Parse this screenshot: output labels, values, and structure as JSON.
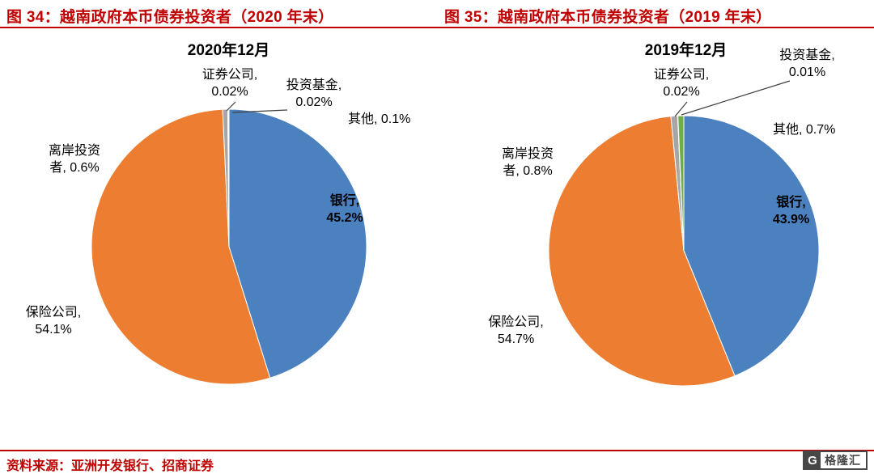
{
  "header": {
    "left_title": "图 34：越南政府本币债券投资者（2020 年末）",
    "right_title": "图 35：越南政府本币债券投资者（2019 年末）"
  },
  "footer": {
    "source": "资料来源：亚洲开发银行、招商证券",
    "logo_letter": "G",
    "logo_text": "格隆汇"
  },
  "colors": {
    "accent": "#C00000",
    "bank": "#4C81BF",
    "insurance": "#ED7D31",
    "offshore": "#A6A6A6",
    "securities": "#FFC000",
    "fund": "#5B9BD5",
    "other": "#70AD47"
  },
  "chart_data": [
    {
      "type": "pie",
      "title": "2020年12月",
      "unit": "%",
      "start_angle": 0,
      "direction": "clockwise",
      "legend_position": "none",
      "slices": [
        {
          "label": "银行",
          "value": 45.2,
          "color": "#4C81BF"
        },
        {
          "label": "保险公司",
          "value": 54.1,
          "color": "#ED7D31"
        },
        {
          "label": "离岸投资者",
          "value": 0.6,
          "color": "#A6A6A6"
        },
        {
          "label": "证券公司",
          "value": 0.02,
          "color": "#FFC000"
        },
        {
          "label": "投资基金",
          "value": 0.02,
          "color": "#5B9BD5"
        },
        {
          "label": "其他",
          "value": 0.1,
          "color": "#70AD47"
        }
      ],
      "labels": {
        "securities_l1": "证券公司,",
        "securities_l2": "0.02%",
        "fund_l1": "投资基金,",
        "fund_l2": "0.02%",
        "other": "其他, 0.1%",
        "bank_l1": "银行,",
        "bank_l2": "45.2%",
        "insurance_l1": "保险公司,",
        "insurance_l2": "54.1%",
        "offshore_l1": "离岸投资",
        "offshore_l2": "者, 0.6%"
      }
    },
    {
      "type": "pie",
      "title": "2019年12月",
      "unit": "%",
      "start_angle": 0,
      "direction": "clockwise",
      "legend_position": "none",
      "slices": [
        {
          "label": "银行",
          "value": 43.9,
          "color": "#4C81BF"
        },
        {
          "label": "保险公司",
          "value": 54.7,
          "color": "#ED7D31"
        },
        {
          "label": "离岸投资者",
          "value": 0.8,
          "color": "#A6A6A6"
        },
        {
          "label": "证券公司",
          "value": 0.02,
          "color": "#FFC000"
        },
        {
          "label": "投资基金",
          "value": 0.01,
          "color": "#5B9BD5"
        },
        {
          "label": "其他",
          "value": 0.7,
          "color": "#70AD47"
        }
      ],
      "labels": {
        "securities_l1": "证券公司,",
        "securities_l2": "0.02%",
        "fund_l1": "投资基金,",
        "fund_l2": "0.01%",
        "other": "其他, 0.7%",
        "bank_l1": "银行,",
        "bank_l2": "43.9%",
        "insurance_l1": "保险公司,",
        "insurance_l2": "54.7%",
        "offshore_l1": "离岸投资",
        "offshore_l2": "者, 0.8%"
      }
    }
  ]
}
